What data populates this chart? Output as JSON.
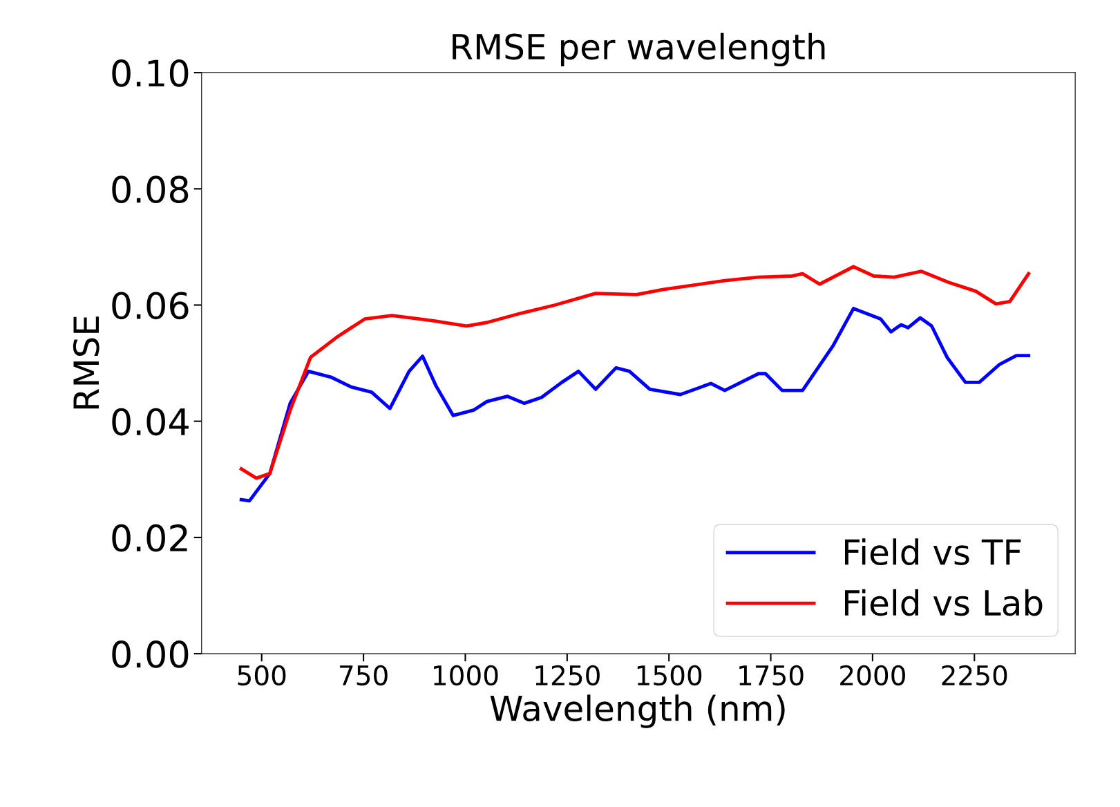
{
  "chart_data": {
    "type": "line",
    "title": "RMSE per wavelength",
    "xlabel": "Wavelength (nm)",
    "ylabel": "RMSE",
    "xlim": [
      352.5,
      2497.5
    ],
    "xticks": [
      500,
      750,
      1000,
      1250,
      1500,
      1750,
      2000,
      2250
    ],
    "ylim": [
      0,
      0.1
    ],
    "yticks": [
      {
        "value": 0,
        "label": "0.00"
      },
      {
        "value": 0.02,
        "label": "0.02"
      },
      {
        "value": 0.04,
        "label": "0.04"
      },
      {
        "value": 0.06,
        "label": "0.06"
      },
      {
        "value": 0.08,
        "label": "0.08"
      },
      {
        "value": 0.1,
        "label": "0.10"
      }
    ],
    "legend": "lower right",
    "grid": false,
    "series": [
      {
        "name": "Field vs TF",
        "color": "#0000ff",
        "x": [
          450,
          470,
          520,
          570,
          615,
          670,
          720,
          770,
          815,
          862,
          895,
          928,
          970,
          1020,
          1053,
          1103,
          1145,
          1187,
          1237,
          1278,
          1320,
          1370,
          1403,
          1453,
          1528,
          1603,
          1637,
          1720,
          1737,
          1778,
          1828,
          1903,
          1953,
          2020,
          2045,
          2070,
          2087,
          2117,
          2145,
          2183,
          2228,
          2262,
          2312,
          2353,
          2383
        ],
        "values": [
          0.0265,
          0.0263,
          0.031,
          0.0431,
          0.0486,
          0.0476,
          0.0459,
          0.045,
          0.0422,
          0.0486,
          0.0512,
          0.0461,
          0.041,
          0.0419,
          0.0434,
          0.0443,
          0.0431,
          0.0441,
          0.0467,
          0.0486,
          0.0455,
          0.0492,
          0.0486,
          0.0455,
          0.0446,
          0.0465,
          0.0453,
          0.0482,
          0.0482,
          0.0453,
          0.0453,
          0.053,
          0.0594,
          0.0576,
          0.0554,
          0.0566,
          0.0561,
          0.0578,
          0.0564,
          0.051,
          0.0467,
          0.0467,
          0.0498,
          0.0513,
          0.0513
        ]
      },
      {
        "name": "Field vs Lab",
        "color": "#ff0000",
        "x": [
          450,
          487,
          520,
          570,
          620,
          687,
          753,
          820,
          920,
          1003,
          1053,
          1137,
          1220,
          1320,
          1420,
          1487,
          1637,
          1720,
          1803,
          1828,
          1870,
          1953,
          2003,
          2053,
          2120,
          2187,
          2253,
          2303,
          2337,
          2383
        ],
        "values": [
          0.0318,
          0.0302,
          0.031,
          0.0419,
          0.051,
          0.0546,
          0.0576,
          0.0582,
          0.0573,
          0.0564,
          0.057,
          0.0586,
          0.06,
          0.062,
          0.0618,
          0.0627,
          0.0642,
          0.0648,
          0.065,
          0.0654,
          0.0636,
          0.0666,
          0.065,
          0.0648,
          0.0658,
          0.0639,
          0.0624,
          0.0602,
          0.0606,
          0.0654
        ]
      }
    ]
  }
}
